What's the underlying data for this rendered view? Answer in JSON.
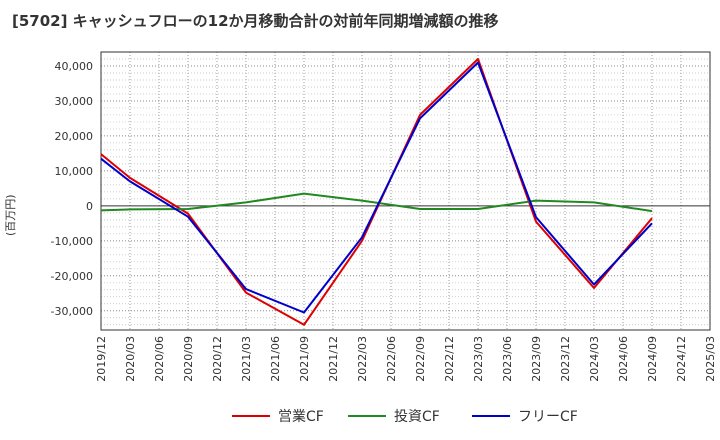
{
  "chart_data": {
    "type": "line",
    "title": "[5702]  キャッシュフローの12か月移動合計の対前年同期増減額の推移",
    "xlabel": "",
    "ylabel": "(百万円)",
    "categories": [
      "2019/12",
      "2020/03",
      "2020/06",
      "2020/09",
      "2020/12",
      "2021/03",
      "2021/06",
      "2021/09",
      "2021/12",
      "2022/03",
      "2022/06",
      "2022/09",
      "2022/12",
      "2023/03",
      "2023/06",
      "2023/09",
      "2023/12",
      "2024/03",
      "2024/06",
      "2024/09",
      "2024/12",
      "2025/03"
    ],
    "ylim": [
      -35500,
      44000
    ],
    "yticks": [
      40000,
      30000,
      20000,
      10000,
      0,
      -10000,
      -20000,
      -30000
    ],
    "ytick_labels": [
      "40,000",
      "30,000",
      "20,000",
      "10,000",
      "0",
      "-10,000",
      "-20,000",
      "-30,000"
    ],
    "grid": true,
    "legend_position": "bottom",
    "series": [
      {
        "name": "営業CF",
        "color": "#dd0000",
        "values": [
          14800,
          8000,
          null,
          -2200,
          null,
          -24800,
          null,
          -34000,
          null,
          -10000,
          null,
          26000,
          null,
          42000,
          null,
          -4500,
          null,
          -23500,
          null,
          -3500,
          null,
          null
        ]
      },
      {
        "name": "投資CF",
        "color": "#228822",
        "values": [
          -1300,
          -1000,
          null,
          -900,
          null,
          1000,
          null,
          3500,
          null,
          1500,
          null,
          -900,
          null,
          -900,
          null,
          1500,
          null,
          1000,
          null,
          -1500,
          null,
          null
        ]
      },
      {
        "name": "フリーCF",
        "color": "#0000cc",
        "values": [
          13500,
          7000,
          null,
          -3100,
          null,
          -23800,
          null,
          -30500,
          null,
          -9000,
          null,
          25000,
          null,
          41000,
          null,
          -3200,
          null,
          -22500,
          null,
          -5000,
          null,
          null
        ]
      }
    ]
  }
}
